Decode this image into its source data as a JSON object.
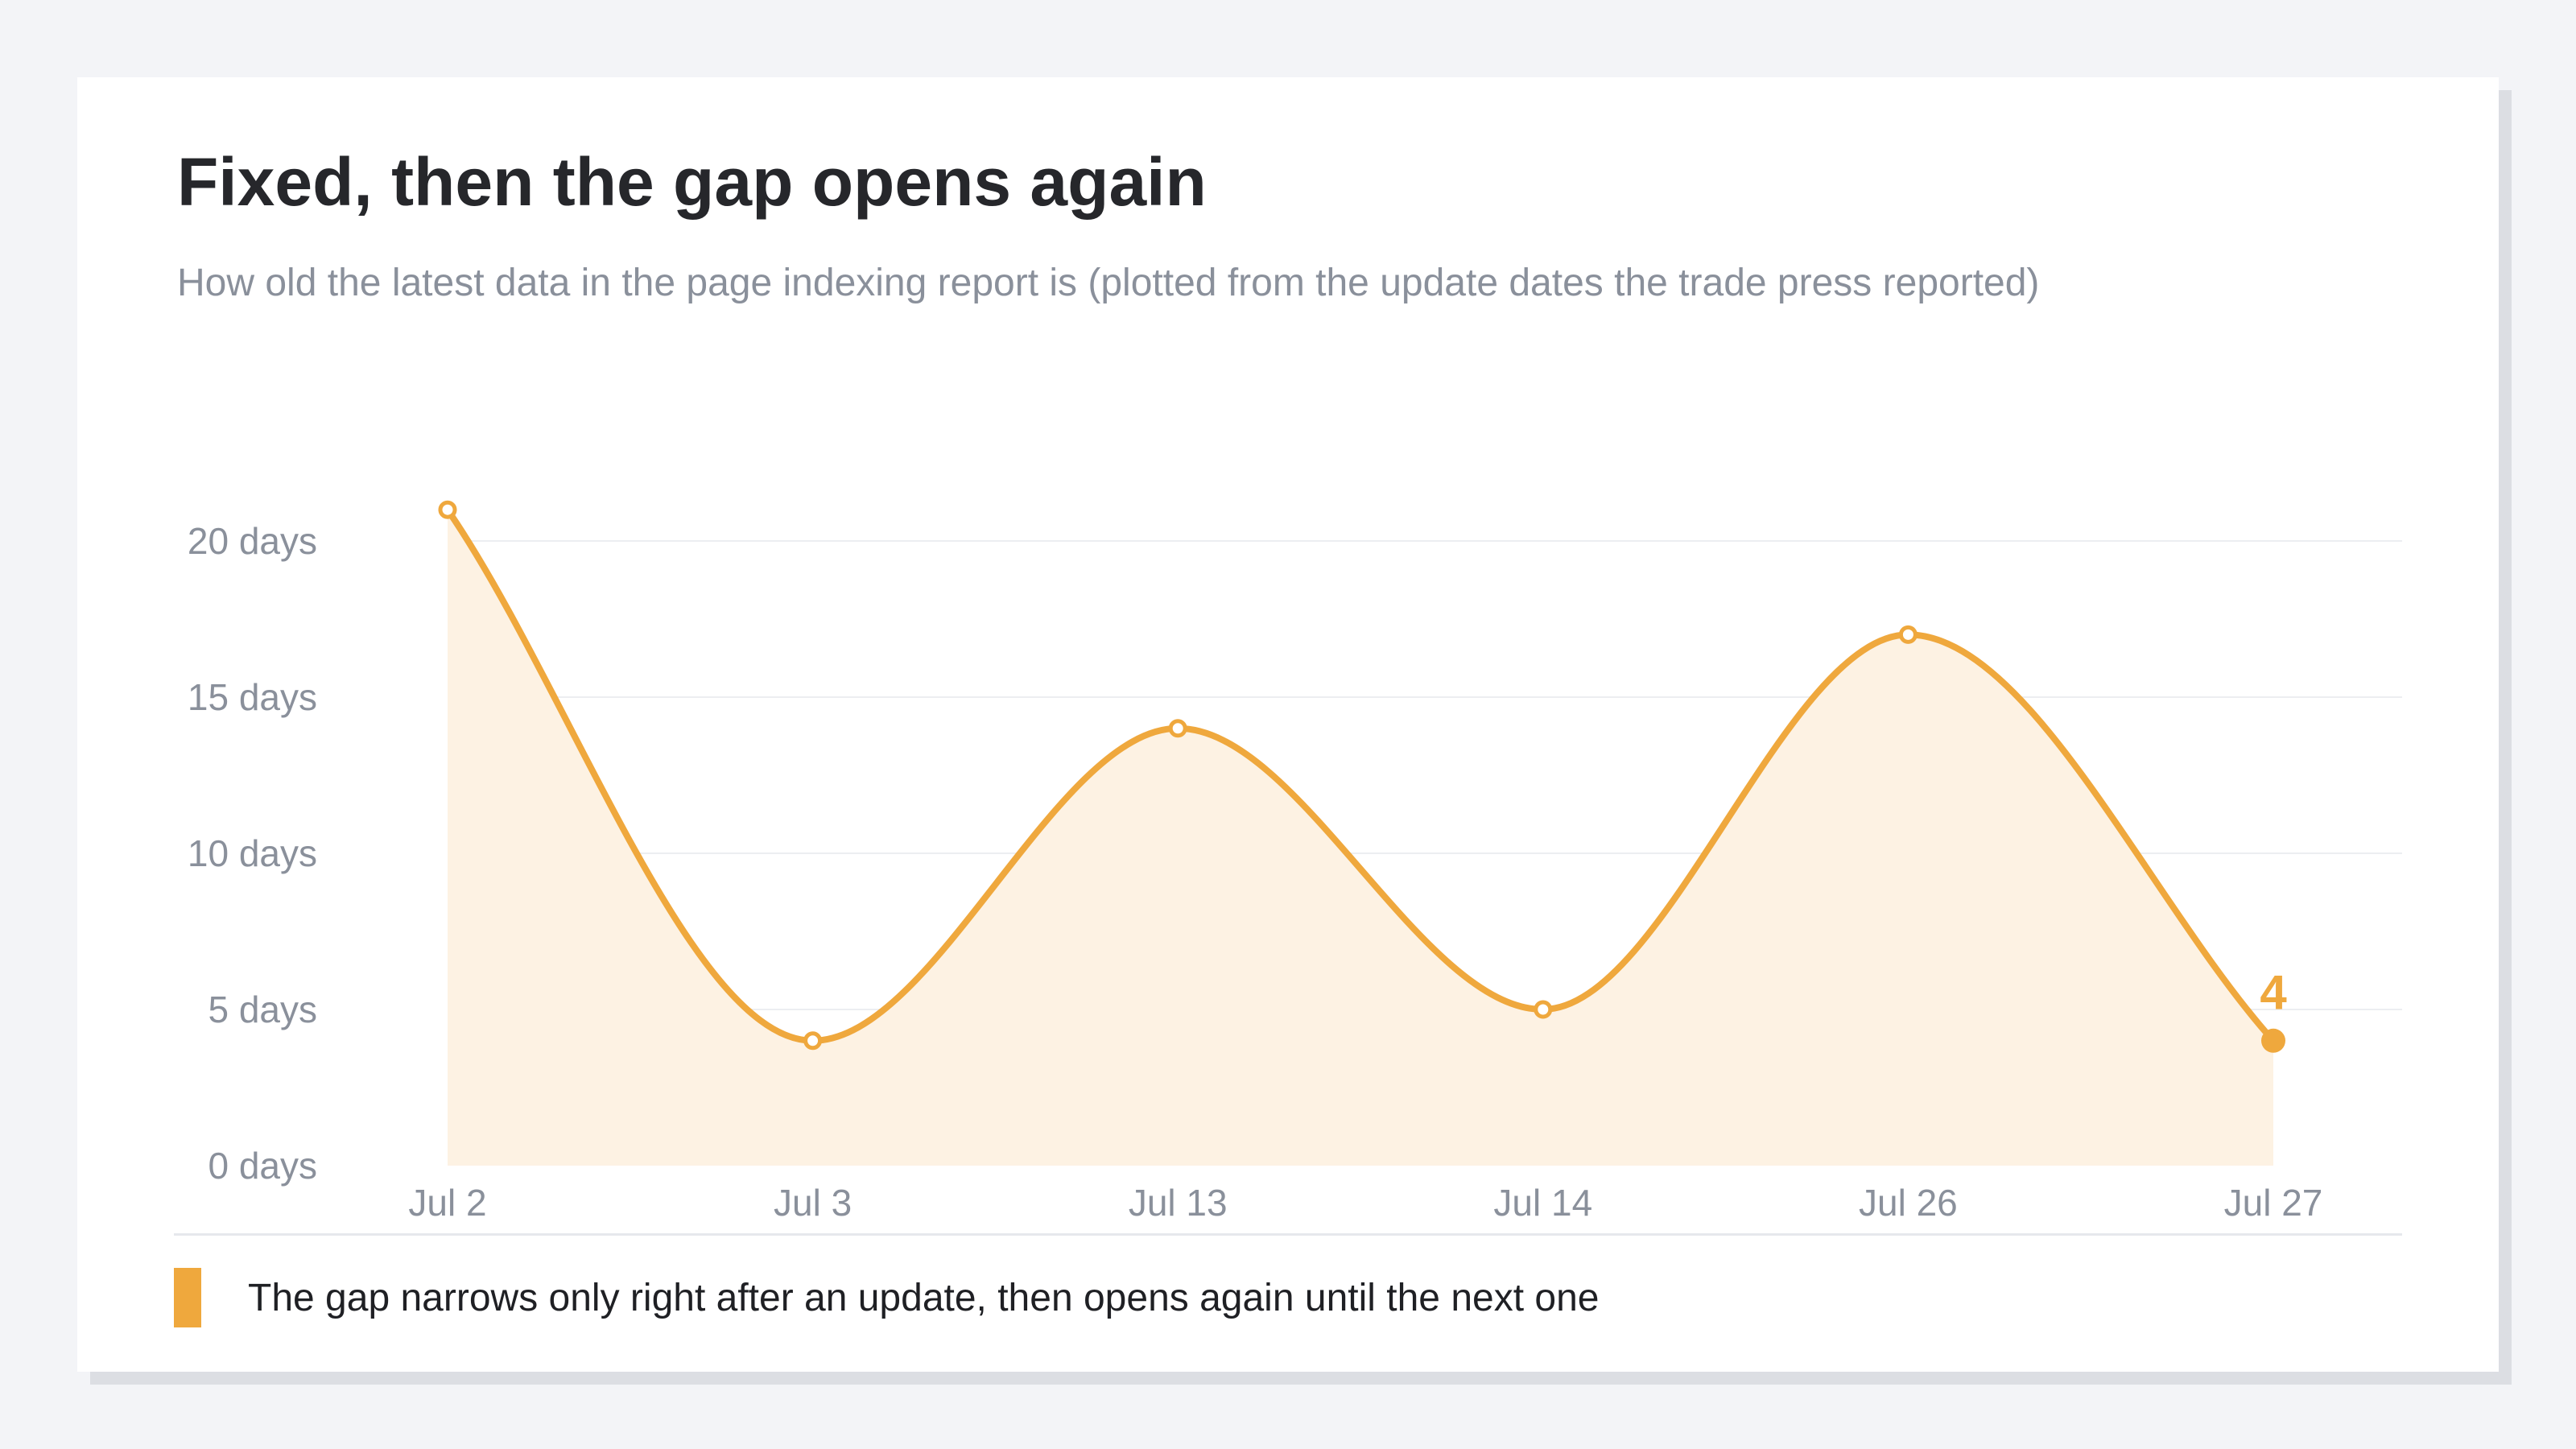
{
  "title": "Fixed, then the gap opens again",
  "subtitle": "How old the latest data in the page indexing report is (plotted from the update dates the trade press reported)",
  "colors": {
    "accent": "#efa83d",
    "area_fill": "#fdf2e3",
    "grid": "#eceef1",
    "text_muted": "#8a909b"
  },
  "chart_data": {
    "type": "area",
    "categories": [
      "Jul 2",
      "Jul 3",
      "Jul 13",
      "Jul 14",
      "Jul 26",
      "Jul 27"
    ],
    "series": [
      {
        "values": [
          21,
          4,
          14,
          5,
          17,
          4
        ]
      }
    ],
    "y_ticks": [
      "0 days",
      "5 days",
      "10 days",
      "15 days",
      "20 days"
    ],
    "y_tick_values": [
      0,
      5,
      10,
      15,
      20
    ],
    "ylim": [
      0,
      20
    ],
    "grid": true,
    "annotation": {
      "category": "Jul 27",
      "text": "4"
    },
    "legend": {
      "position": "bottom-left",
      "label": "The gap narrows only right after an update, then opens again until the next one"
    }
  }
}
